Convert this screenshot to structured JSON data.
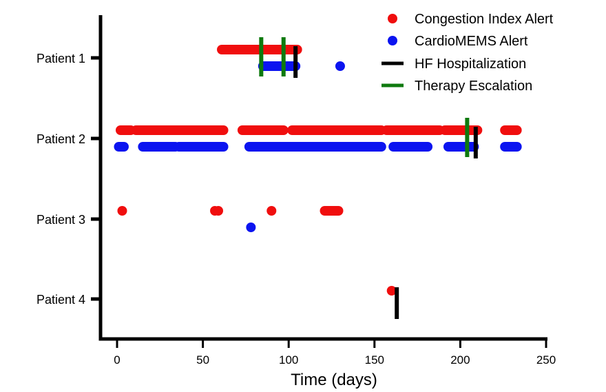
{
  "colors": {
    "congestion": "#f00e0e",
    "cardiomems": "#0b14f0",
    "hospitalization": "#000000",
    "therapy": "#0e7a0e",
    "axis": "#000000"
  },
  "chart_data": {
    "type": "scatter",
    "xlabel": "Time (days)",
    "ylabel": "",
    "xlim": [
      -5,
      250
    ],
    "x_ticks": [
      0,
      50,
      100,
      150,
      200,
      250
    ],
    "categories": [
      "Patient 1",
      "Patient 2",
      "Patient 3",
      "Patient 4"
    ],
    "legend": {
      "position": "top-right",
      "entries": [
        {
          "label": "Congestion Index Alert",
          "marker": "dot",
          "color_key": "congestion"
        },
        {
          "label": "CardioMEMS Alert",
          "marker": "dot",
          "color_key": "cardiomems"
        },
        {
          "label": "HF Hospitalization",
          "marker": "line",
          "color_key": "hospitalization"
        },
        {
          "label": "Therapy Escalation",
          "marker": "line",
          "color_key": "therapy"
        }
      ]
    },
    "series": [
      {
        "name": "Congestion Index Alert",
        "color_key": "congestion",
        "marker": "dot",
        "points": [
          {
            "patient": "Patient 1",
            "x_ranges": [
              [
                61,
                105
              ]
            ],
            "x": []
          },
          {
            "patient": "Patient 2",
            "x_ranges": [
              [
                2,
                8
              ],
              [
                11,
                62
              ],
              [
                73,
                97
              ],
              [
                102,
                154
              ],
              [
                157,
                188
              ],
              [
                191,
                210
              ],
              [
                226,
                233
              ]
            ],
            "x": []
          },
          {
            "patient": "Patient 3",
            "x_ranges": [
              [
                121,
                129
              ]
            ],
            "x": [
              3,
              57,
              59,
              90
            ]
          },
          {
            "patient": "Patient 4",
            "x_ranges": [],
            "x": [
              160
            ]
          }
        ]
      },
      {
        "name": "CardioMEMS Alert",
        "color_key": "cardiomems",
        "marker": "dot",
        "points": [
          {
            "patient": "Patient 1",
            "x_ranges": [
              [
                85,
                104
              ]
            ],
            "x": [
              130
            ]
          },
          {
            "patient": "Patient 2",
            "x_ranges": [
              [
                1,
                4
              ],
              [
                15,
                34
              ],
              [
                36,
                62
              ],
              [
                77,
                154
              ],
              [
                161,
                181
              ],
              [
                193,
                208
              ],
              [
                226,
                233
              ]
            ],
            "x": []
          },
          {
            "patient": "Patient 3",
            "x_ranges": [],
            "x": [
              78
            ]
          },
          {
            "patient": "Patient 4",
            "x_ranges": [],
            "x": []
          }
        ]
      },
      {
        "name": "HF Hospitalization",
        "color_key": "hospitalization",
        "marker": "line",
        "points": [
          {
            "patient": "Patient 1",
            "x": [
              104
            ]
          },
          {
            "patient": "Patient 2",
            "x": [
              209
            ]
          },
          {
            "patient": "Patient 3",
            "x": []
          },
          {
            "patient": "Patient 4",
            "x": [
              163
            ]
          }
        ]
      },
      {
        "name": "Therapy Escalation",
        "color_key": "therapy",
        "marker": "line",
        "points": [
          {
            "patient": "Patient 1",
            "x": [
              84,
              97
            ]
          },
          {
            "patient": "Patient 2",
            "x": [
              204
            ]
          },
          {
            "patient": "Patient 3",
            "x": []
          },
          {
            "patient": "Patient 4",
            "x": []
          }
        ]
      }
    ]
  }
}
